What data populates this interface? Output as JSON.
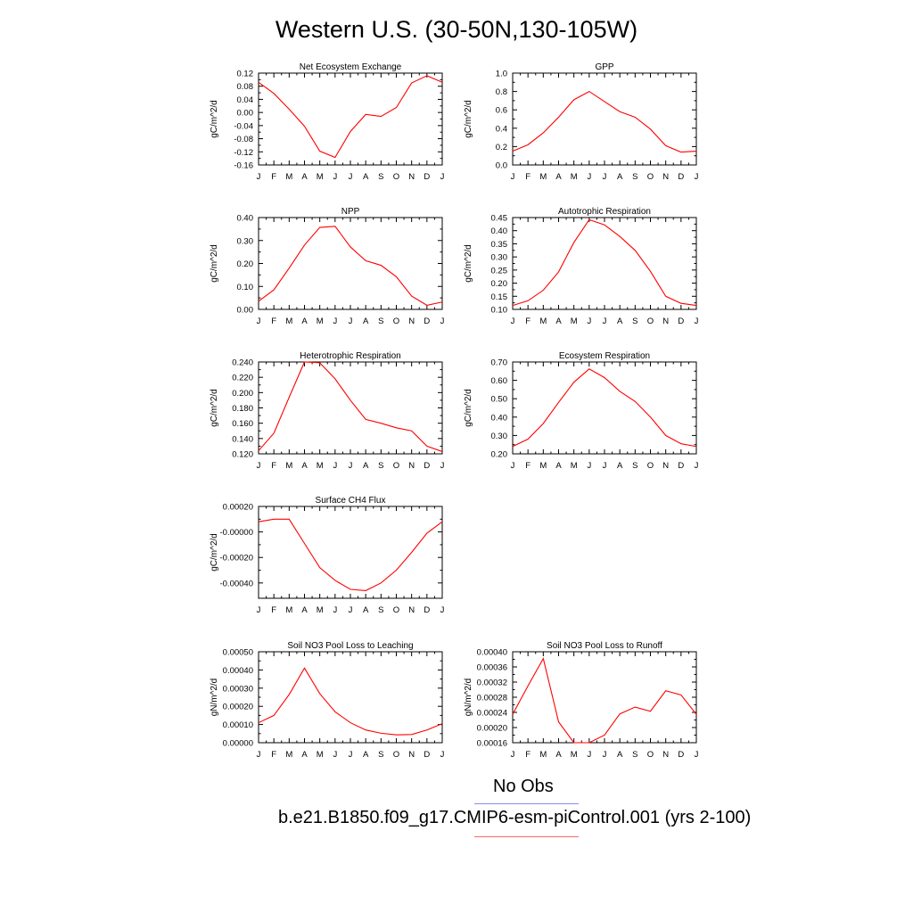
{
  "title": "Western U.S. (30-50N,130-105W)",
  "colors": {
    "model": "#ff0000",
    "obs": "#8a8aee",
    "axis": "#000000"
  },
  "legend": [
    {
      "label": "No Obs",
      "color": "#8a8aee"
    },
    {
      "label": "b.e21.B1850.f09_g17.CMIP6-esm-piControl.001 (yrs 2-100)",
      "color": "#ff0000"
    }
  ],
  "chart_data": [
    {
      "type": "line",
      "title": "Net Ecosystem Exchange",
      "ylabel": "gC/m^2/d",
      "categories": [
        "J",
        "F",
        "M",
        "A",
        "M",
        "J",
        "J",
        "A",
        "S",
        "O",
        "N",
        "D",
        "J"
      ],
      "ylim": [
        -0.16,
        0.12
      ],
      "yticks": [
        "0.12",
        "0.08",
        "0.04",
        "0.00",
        "-0.04",
        "-0.08",
        "-0.12",
        "-0.16"
      ],
      "series": [
        {
          "values": [
            0.092,
            0.058,
            0.01,
            -0.042,
            -0.118,
            -0.137,
            -0.058,
            -0.006,
            -0.012,
            0.015,
            0.09,
            0.112,
            0.092
          ]
        }
      ]
    },
    {
      "type": "line",
      "title": "GPP",
      "ylabel": "gC/m^2/d",
      "categories": [
        "J",
        "F",
        "M",
        "A",
        "M",
        "J",
        "J",
        "A",
        "S",
        "O",
        "N",
        "D",
        "J"
      ],
      "ylim": [
        0.0,
        1.0
      ],
      "yticks": [
        "1.0",
        "0.8",
        "0.6",
        "0.4",
        "0.2",
        "0.0"
      ],
      "series": [
        {
          "values": [
            0.15,
            0.22,
            0.35,
            0.52,
            0.71,
            0.8,
            0.69,
            0.58,
            0.52,
            0.39,
            0.21,
            0.14,
            0.15
          ]
        }
      ]
    },
    {
      "type": "line",
      "title": "NPP",
      "ylabel": "gC/m^2/d",
      "categories": [
        "J",
        "F",
        "M",
        "A",
        "M",
        "J",
        "J",
        "A",
        "S",
        "O",
        "N",
        "D",
        "J"
      ],
      "ylim": [
        0.0,
        0.4
      ],
      "yticks": [
        "0.40",
        "0.30",
        "0.20",
        "0.10",
        "0.00"
      ],
      "series": [
        {
          "values": [
            0.035,
            0.085,
            0.18,
            0.28,
            0.357,
            0.362,
            0.272,
            0.212,
            0.192,
            0.142,
            0.058,
            0.018,
            0.032
          ]
        }
      ]
    },
    {
      "type": "line",
      "title": "Autotrophic Respiration",
      "ylabel": "gC/m^2/d",
      "categories": [
        "J",
        "F",
        "M",
        "A",
        "M",
        "J",
        "J",
        "A",
        "S",
        "O",
        "N",
        "D",
        "J"
      ],
      "ylim": [
        0.1,
        0.45
      ],
      "yticks": [
        "0.45",
        "0.40",
        "0.35",
        "0.30",
        "0.25",
        "0.20",
        "0.15",
        "0.10"
      ],
      "series": [
        {
          "values": [
            0.115,
            0.133,
            0.173,
            0.243,
            0.355,
            0.442,
            0.422,
            0.378,
            0.325,
            0.245,
            0.15,
            0.123,
            0.115
          ]
        }
      ]
    },
    {
      "type": "line",
      "title": "Heterotrophic Respiration",
      "ylabel": "gC/m^2/d",
      "categories": [
        "J",
        "F",
        "M",
        "A",
        "M",
        "J",
        "J",
        "A",
        "S",
        "O",
        "N",
        "D",
        "J"
      ],
      "ylim": [
        0.12,
        0.24
      ],
      "yticks": [
        "0.240",
        "0.220",
        "0.200",
        "0.180",
        "0.160",
        "0.140",
        "0.120"
      ],
      "series": [
        {
          "values": [
            0.124,
            0.147,
            0.194,
            0.24,
            0.239,
            0.218,
            0.19,
            0.165,
            0.16,
            0.154,
            0.15,
            0.13,
            0.123
          ]
        }
      ]
    },
    {
      "type": "line",
      "title": "Ecosystem Respiration",
      "ylabel": "gC/m^2/d",
      "categories": [
        "J",
        "F",
        "M",
        "A",
        "M",
        "J",
        "J",
        "A",
        "S",
        "O",
        "N",
        "D",
        "J"
      ],
      "ylim": [
        0.2,
        0.7
      ],
      "yticks": [
        "0.70",
        "0.60",
        "0.50",
        "0.40",
        "0.30",
        "0.20"
      ],
      "series": [
        {
          "values": [
            0.24,
            0.28,
            0.365,
            0.48,
            0.59,
            0.662,
            0.615,
            0.54,
            0.485,
            0.4,
            0.3,
            0.255,
            0.24
          ]
        }
      ]
    },
    {
      "type": "line",
      "title": "Surface CH4 Flux",
      "ylabel": "gC/m^2/d",
      "categories": [
        "J",
        "F",
        "M",
        "A",
        "M",
        "J",
        "J",
        "A",
        "S",
        "O",
        "N",
        "D",
        "J"
      ],
      "ylim": [
        -0.00052,
        0.0002
      ],
      "yticks": [
        "0.00020",
        "-0.00000",
        "-0.00020",
        "-0.00040"
      ],
      "ytick_values": [
        0.0002,
        0.0,
        -0.0002,
        -0.0004
      ],
      "series": [
        {
          "values": [
            8e-05,
            0.0001,
            0.0001,
            -9e-05,
            -0.00028,
            -0.00038,
            -0.00045,
            -0.00046,
            -0.0004,
            -0.0003,
            -0.00016,
            -1e-05,
            8e-05
          ]
        }
      ]
    },
    {
      "type": "line",
      "title": "Soil NO3 Pool Loss to Leaching",
      "ylabel": "gN/m^2/d",
      "categories": [
        "J",
        "F",
        "M",
        "A",
        "M",
        "J",
        "J",
        "A",
        "S",
        "O",
        "N",
        "D",
        "J"
      ],
      "ylim": [
        0.0,
        0.0005
      ],
      "yticks": [
        "0.00050",
        "0.00040",
        "0.00030",
        "0.00020",
        "0.00010",
        "0.00000"
      ],
      "series": [
        {
          "values": [
            0.00011,
            0.00015,
            0.000265,
            0.00041,
            0.00027,
            0.00017,
            0.00011,
            7e-05,
            5.2e-05,
            4.3e-05,
            4.5e-05,
            7e-05,
            0.000105
          ]
        }
      ]
    },
    {
      "type": "line",
      "title": "Soil NO3 Pool Loss to Runoff",
      "ylabel": "gN/m^2/d",
      "categories": [
        "J",
        "F",
        "M",
        "A",
        "M",
        "J",
        "J",
        "A",
        "S",
        "O",
        "N",
        "D",
        "J"
      ],
      "ylim": [
        0.00016,
        0.0004
      ],
      "yticks": [
        "0.00040",
        "0.00036",
        "0.00032",
        "0.00028",
        "0.00024",
        "0.00020",
        "0.00016"
      ],
      "series": [
        {
          "values": [
            0.000235,
            0.00031,
            0.000382,
            0.000215,
            0.00016,
            0.00016,
            0.00018,
            0.000236,
            0.000254,
            0.000243,
            0.000297,
            0.000286,
            0.000235
          ]
        }
      ]
    }
  ]
}
